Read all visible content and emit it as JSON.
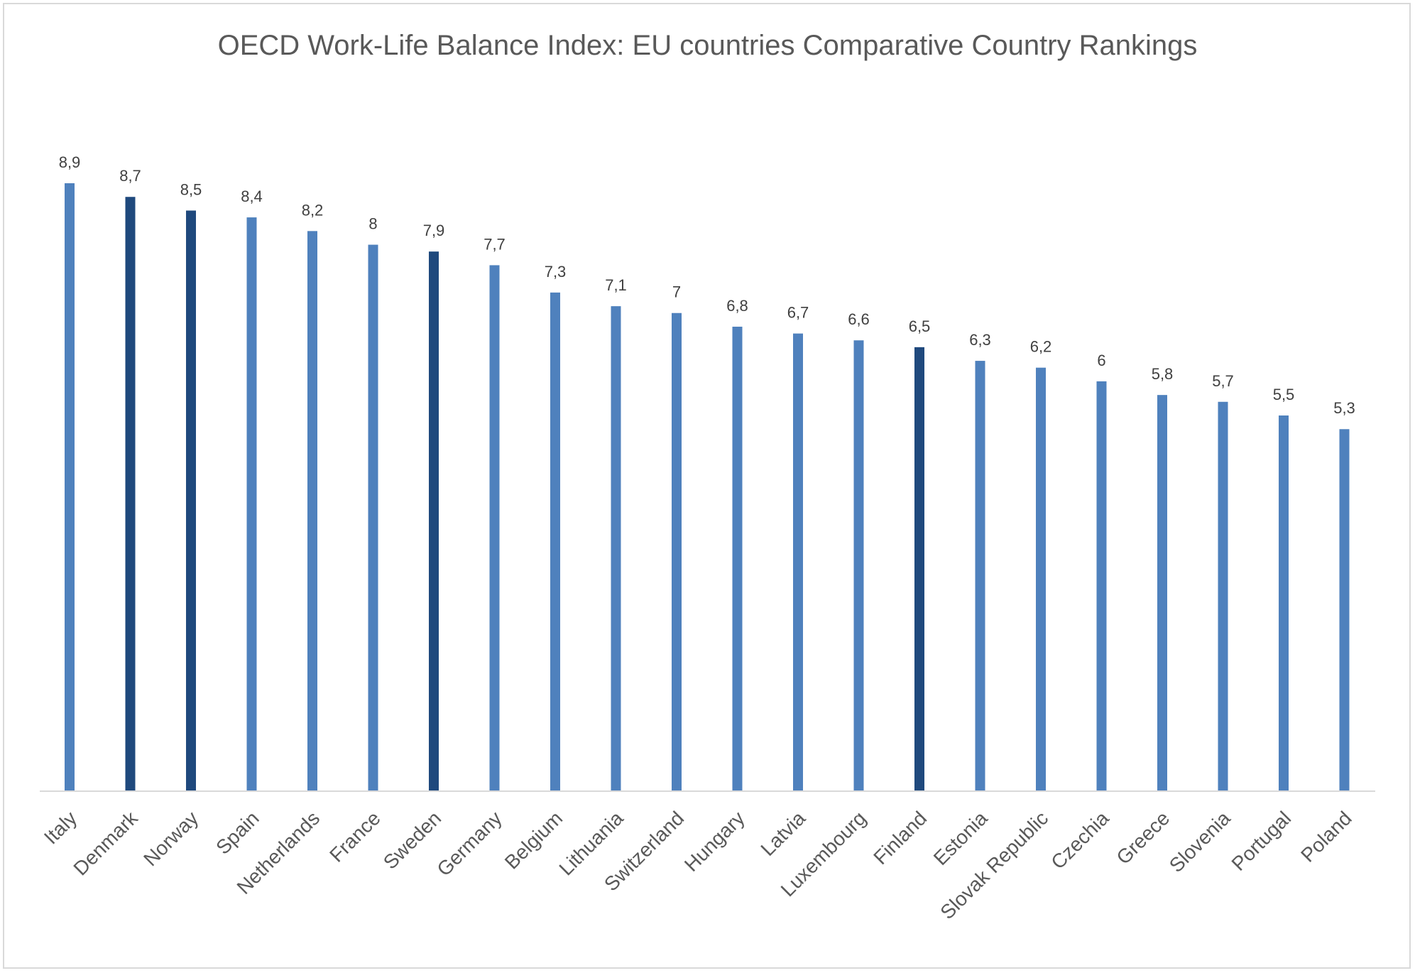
{
  "chart_data": {
    "type": "bar",
    "title": "OECD Work-Life Balance Index: EU countries Comparative Country Rankings",
    "categories": [
      "Italy",
      "Denmark",
      "Norway",
      "Spain",
      "Netherlands",
      "France",
      "Sweden",
      "Germany",
      "Belgium",
      "Lithuania",
      "Switzerland",
      "Hungary",
      "Latvia",
      "Luxembourg",
      "Finland",
      "Estonia",
      "Slovak Republic",
      "Czechia",
      "Greece",
      "Slovenia",
      "Portugal",
      "Poland"
    ],
    "values": [
      8.9,
      8.7,
      8.5,
      8.4,
      8.2,
      8,
      7.9,
      7.7,
      7.3,
      7.1,
      7,
      6.8,
      6.7,
      6.6,
      6.5,
      6.3,
      6.2,
      6,
      5.8,
      5.7,
      5.5,
      5.3
    ],
    "value_labels": [
      "8,9",
      "8,7",
      "8,5",
      "8,4",
      "8,2",
      "8",
      "7,9",
      "7,7",
      "7,3",
      "7,1",
      "7",
      "6,8",
      "6,7",
      "6,6",
      "6,5",
      "6,3",
      "6,2",
      "6",
      "5,8",
      "5,7",
      "5,5",
      "5,3"
    ],
    "highlighted": [
      "Denmark",
      "Norway",
      "Sweden",
      "Finland"
    ],
    "ylim": [
      0,
      8.9
    ],
    "grid": false,
    "legend": "none",
    "colors": {
      "bar": "#4f81bd",
      "highlight": "#1f497d",
      "axis": "#d9d9d9",
      "label": "#404040",
      "category_label": "#595959",
      "title": "#595959"
    }
  }
}
